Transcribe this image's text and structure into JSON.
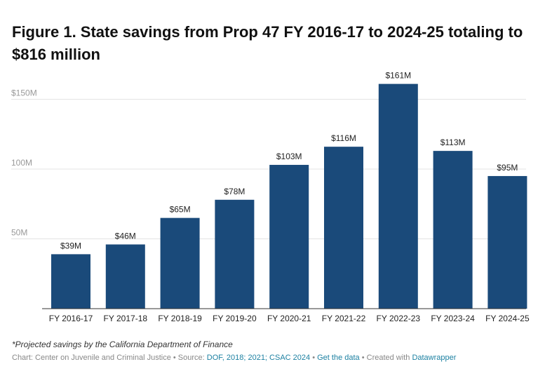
{
  "title_line1": "Figure 1. State savings from Prop 47 FY 2016-17 to 2024-25 totaling to",
  "title_line2": "$816 million",
  "chart_data": {
    "type": "bar",
    "categories": [
      "FY 2016-17",
      "FY 2017-18",
      "FY 2018-19",
      "FY 2019-20",
      "FY 2020-21",
      "FY 2021-22",
      "FY 2022-23",
      "FY 2023-24",
      "FY 2024-25"
    ],
    "values": [
      39,
      46,
      65,
      78,
      103,
      116,
      161,
      113,
      95
    ],
    "value_labels": [
      "$39M",
      "$46M",
      "$65M",
      "$78M",
      "$103M",
      "$116M",
      "$161M",
      "$113M",
      "$95M"
    ],
    "unit": "M",
    "y_ticks": [
      50,
      100,
      150
    ],
    "y_tick_labels": [
      "50M",
      "100M",
      "$150M"
    ],
    "ylim": [
      0,
      170
    ],
    "grid": true,
    "bar_color": "#1a4a7a"
  },
  "footnote": "*Projected savings by the California Department of Finance",
  "credits": {
    "chart_prefix": "Chart: Center on Juvenile and Criminal Justice • Source: ",
    "source_link": "DOF, 2018; 2021; CSAC 2024",
    "sep1": " • ",
    "data_link": "Get the data",
    "sep2": " • Created with ",
    "tool_link": "Datawrapper"
  }
}
